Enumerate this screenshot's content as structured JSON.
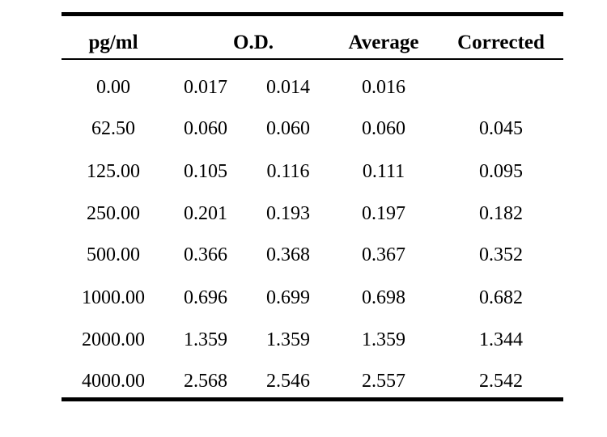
{
  "table": {
    "headers": {
      "concentration": "pg/ml",
      "od": "O.D.",
      "average": "Average",
      "corrected": "Corrected"
    },
    "rows": [
      {
        "conc": "0.00",
        "od1": "0.017",
        "od2": "0.014",
        "avg": "0.016",
        "corr": ""
      },
      {
        "conc": "62.50",
        "od1": "0.060",
        "od2": "0.060",
        "avg": "0.060",
        "corr": "0.045"
      },
      {
        "conc": "125.00",
        "od1": "0.105",
        "od2": "0.116",
        "avg": "0.111",
        "corr": "0.095"
      },
      {
        "conc": "250.00",
        "od1": "0.201",
        "od2": "0.193",
        "avg": "0.197",
        "corr": "0.182"
      },
      {
        "conc": "500.00",
        "od1": "0.366",
        "od2": "0.368",
        "avg": "0.367",
        "corr": "0.352"
      },
      {
        "conc": "1000.00",
        "od1": "0.696",
        "od2": "0.699",
        "avg": "0.698",
        "corr": "0.682"
      },
      {
        "conc": "2000.00",
        "od1": "1.359",
        "od2": "1.359",
        "avg": "1.359",
        "corr": "1.344"
      },
      {
        "conc": "4000.00",
        "od1": "2.568",
        "od2": "2.546",
        "avg": "2.557",
        "corr": "2.542"
      }
    ]
  }
}
